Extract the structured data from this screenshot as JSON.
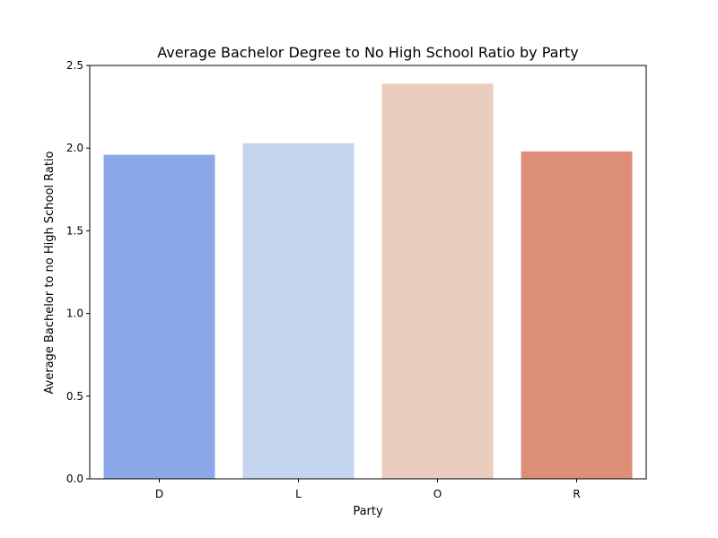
{
  "chart_data": {
    "type": "bar",
    "title": "Average Bachelor Degree to No High School Ratio by Party",
    "xlabel": "Party",
    "ylabel": "Average Bachelor to no High School Ratio",
    "categories": [
      "D",
      "L",
      "O",
      "R"
    ],
    "values": [
      1.96,
      2.03,
      2.39,
      1.98
    ],
    "colors": [
      "#8aa8e8",
      "#c6d5ef",
      "#eacdbf",
      "#dc8e77"
    ],
    "ylim": [
      0,
      2.5
    ],
    "yticks": [
      0.0,
      0.5,
      1.0,
      1.5,
      2.0,
      2.5
    ],
    "ytick_labels": [
      "0.0",
      "0.5",
      "1.0",
      "1.5",
      "2.0",
      "2.5"
    ],
    "grid": false,
    "legend": "none"
  }
}
